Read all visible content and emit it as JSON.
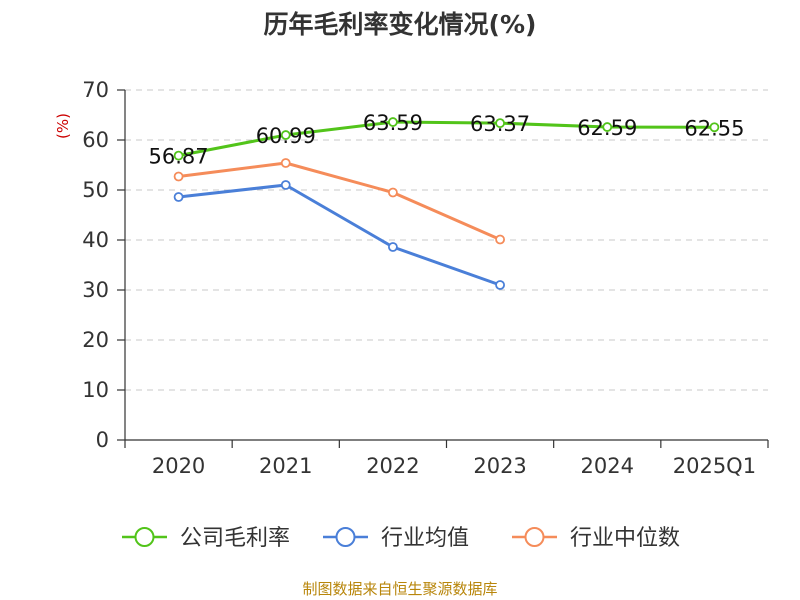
{
  "chart_data": {
    "type": "line",
    "title": "历年毛利率变化情况(%)",
    "ylabel": "(%)",
    "xlabel": "",
    "categories": [
      "2020",
      "2021",
      "2022",
      "2023",
      "2024",
      "2025Q1"
    ],
    "ylim": [
      0,
      70
    ],
    "yticks": [
      0,
      10,
      20,
      30,
      40,
      50,
      60,
      70
    ],
    "grid": true,
    "legend_position": "bottom",
    "series": [
      {
        "name": "公司毛利率",
        "color": "#52c41a",
        "values": [
          56.87,
          60.99,
          63.59,
          63.37,
          62.59,
          62.55
        ],
        "labels": [
          "56.87",
          "60.99",
          "63.59",
          "63.37",
          "62.59",
          "62.55"
        ]
      },
      {
        "name": "行业均值",
        "color": "#4a7fd8",
        "values": [
          48.6,
          51.0,
          38.6,
          31.0,
          null,
          null
        ]
      },
      {
        "name": "行业中位数",
        "color": "#f58c5a",
        "values": [
          52.7,
          55.4,
          49.5,
          40.1,
          null,
          null
        ]
      }
    ],
    "source": "制图数据来自恒生聚源数据库"
  }
}
